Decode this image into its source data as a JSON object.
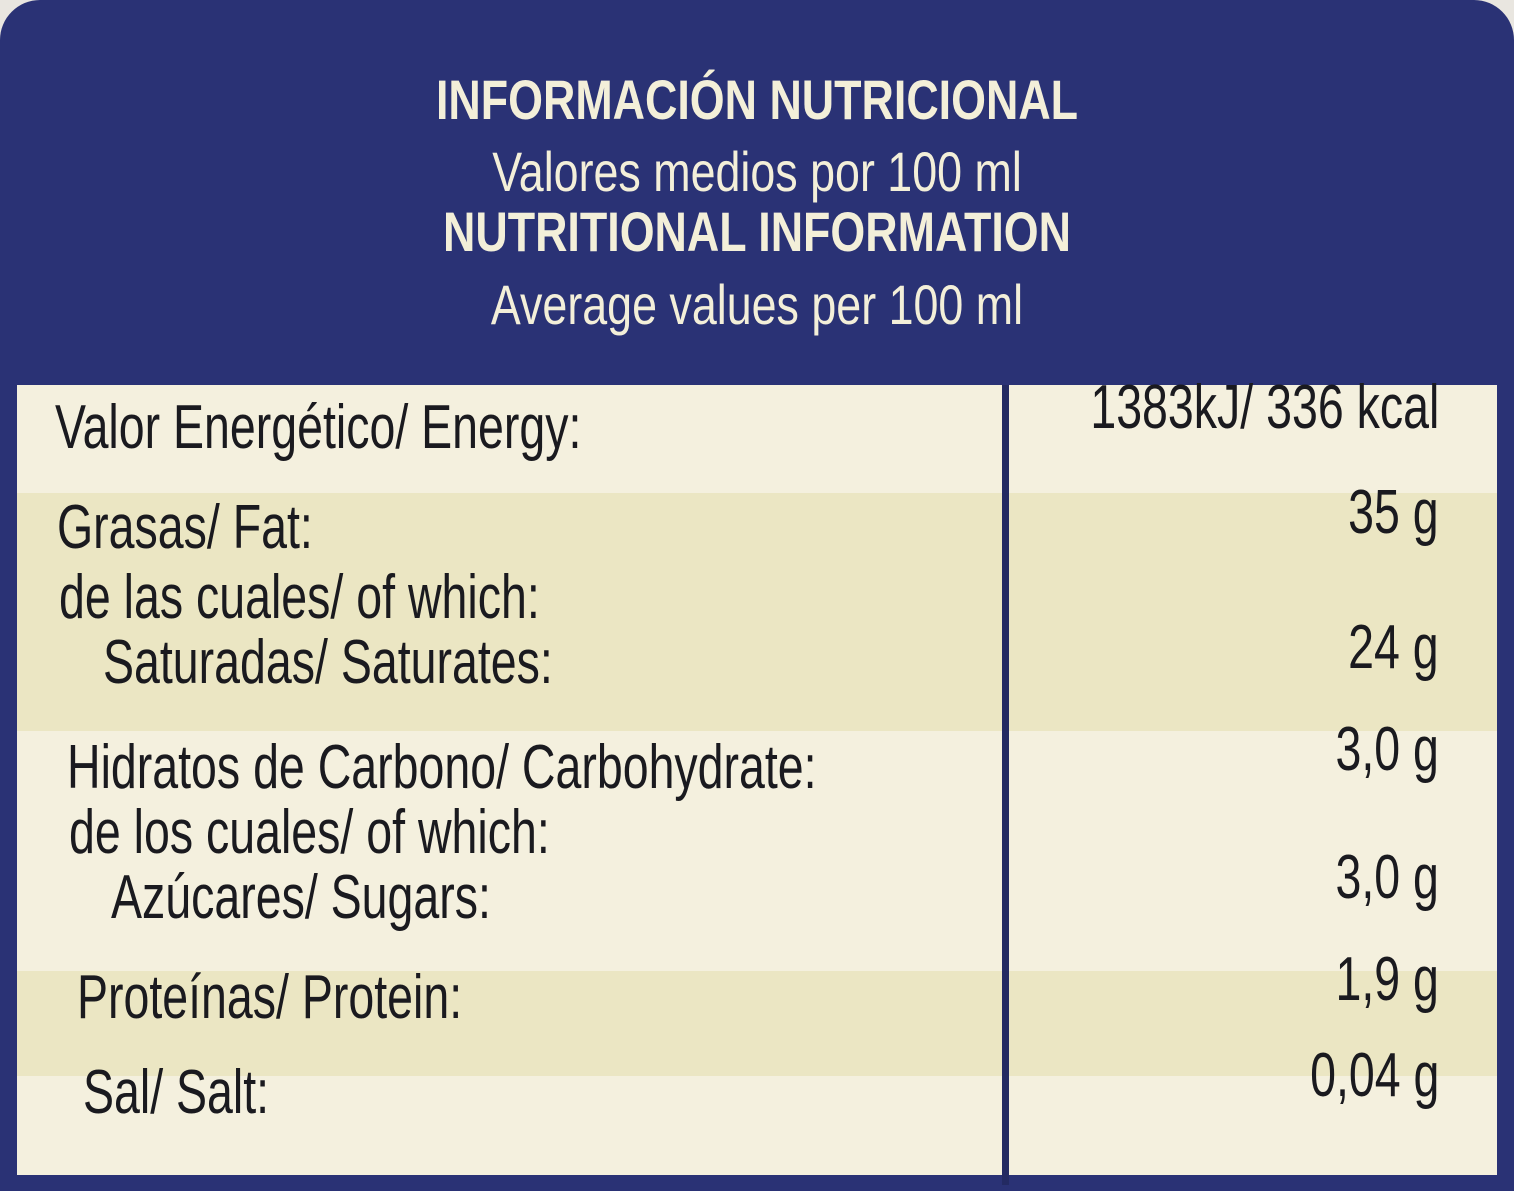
{
  "header": {
    "title_es": "INFORMACIÓN NUTRICIONAL",
    "subtitle_es": "Valores medios por 100 ml",
    "title_en": "NUTRITIONAL INFORMATION",
    "subtitle_en": "Average values per 100 ml"
  },
  "table": {
    "rows": [
      [
        "Valor Energético/ Energy:",
        "1383kJ/ 336 kcal"
      ],
      [
        "Grasas/ Fat:",
        "35 g"
      ],
      [
        "de las cuales/ of which:"
      ],
      [
        "Saturadas/ Saturates:",
        "24 g"
      ],
      [
        "Hidratos de Carbono/ Carbohydrate:",
        "3,0 g"
      ],
      [
        "de los cuales/ of which:"
      ],
      [
        "Azúcares/ Sugars:",
        "3,0 g"
      ],
      [
        "Proteínas/ Protein:",
        "1,9 g"
      ],
      [
        "Sal/ Salt:",
        "0,04 g"
      ]
    ]
  }
}
